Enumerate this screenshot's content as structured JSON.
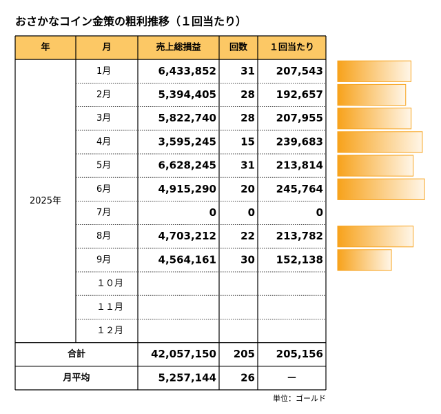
{
  "title": "おさかなコイン金策の粗利推移（１回当たり）",
  "unit_note": "単位：ゴールド",
  "table": {
    "headers": [
      "年",
      "月",
      "売上総損益",
      "回数",
      "１回当たり"
    ],
    "year": "2025年",
    "rows": [
      [
        "1月",
        "6,433,852",
        "31",
        "207,543"
      ],
      [
        "2月",
        "5,394,405",
        "28",
        "192,657"
      ],
      [
        "3月",
        "5,822,740",
        "28",
        "207,955"
      ],
      [
        "4月",
        "3,595,245",
        "15",
        "239,683"
      ],
      [
        "5月",
        "6,628,245",
        "31",
        "213,814"
      ],
      [
        "6月",
        "4,915,290",
        "20",
        "245,764"
      ],
      [
        "7月",
        "0",
        "0",
        "0"
      ],
      [
        "8月",
        "4,703,212",
        "22",
        "213,782"
      ],
      [
        "9月",
        "4,564,161",
        "30",
        "152,138"
      ],
      [
        "１０月",
        null,
        null,
        null
      ],
      [
        "１１月",
        null,
        null,
        null
      ],
      [
        "１２月",
        null,
        null,
        null
      ]
    ],
    "total": [
      "合計",
      "42,057,150",
      "205",
      "205,156"
    ],
    "average": [
      "月平均",
      "5,257,144",
      "26",
      "－"
    ]
  },
  "data_bars": {
    "values": [
      207543,
      192657,
      207955,
      239683,
      213814,
      245764,
      0,
      213782,
      152138,
      null,
      null,
      null
    ],
    "color": "#f7a21b"
  }
}
